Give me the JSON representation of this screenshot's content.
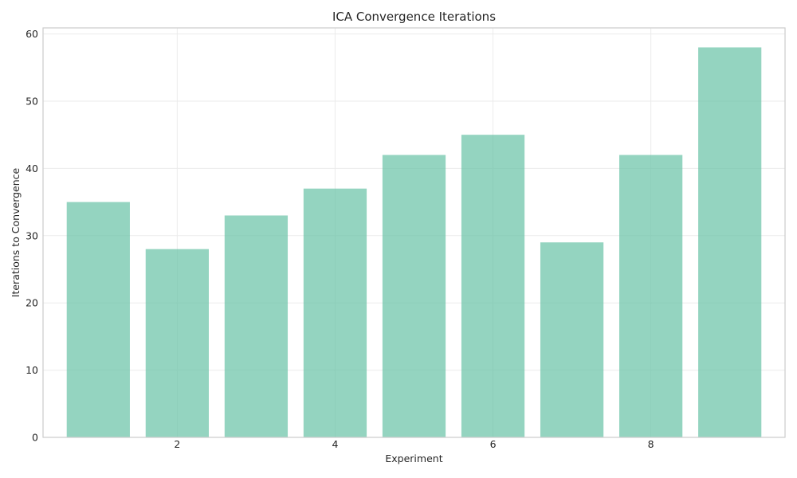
{
  "chart_data": {
    "type": "bar",
    "title": "ICA Convergence Iterations",
    "xlabel": "Experiment",
    "ylabel": "Iterations to Convergence",
    "x": [
      1,
      2,
      3,
      4,
      5,
      6,
      7,
      8,
      9
    ],
    "values": [
      35,
      28,
      33,
      37,
      42,
      45,
      29,
      42,
      58
    ],
    "xlim": [
      0.3,
      9.7
    ],
    "ylim": [
      0,
      60.9
    ],
    "xticks": [
      2,
      4,
      6,
      8
    ],
    "yticks": [
      0,
      10,
      20,
      30,
      40,
      50,
      60
    ],
    "grid": true,
    "bar_color": "#66c2a5"
  }
}
